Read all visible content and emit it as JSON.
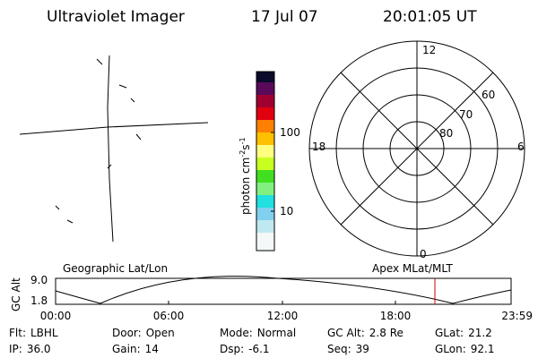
{
  "header": {
    "title": "Ultraviolet Imager",
    "date": "17 Jul 07",
    "time": "20:01:05 UT"
  },
  "colorbar": {
    "label": {
      "base": "photon cm",
      "exp1": "-2",
      "unit": "s",
      "exp2": "-1"
    },
    "ticks": [
      "100",
      "10"
    ]
  },
  "polar": {
    "mlt_labels": [
      "12",
      "18",
      "6",
      "0"
    ],
    "lat_labels": [
      "60",
      "70",
      "80"
    ]
  },
  "timeline": {
    "y_label": "GC Alt",
    "y_ticks": [
      "9.0",
      "1.8"
    ],
    "left_label": "Geographic Lat/Lon",
    "right_label": "Apex MLat/MLT",
    "x_ticks": [
      "00:00",
      "06:00",
      "12:00",
      "18:00",
      "23:59"
    ]
  },
  "footer": {
    "rows": [
      [
        {
          "label": "Flt:",
          "value": "LBHL"
        },
        {
          "label": "Door:",
          "value": "Open"
        },
        {
          "label": "Mode:",
          "value": "Normal"
        },
        {
          "label": "GC Alt:",
          "value": "2.8 Re"
        },
        {
          "label": "GLat:",
          "value": "21.2"
        }
      ],
      [
        {
          "label": "IP:",
          "value": "36.0"
        },
        {
          "label": "Gain:",
          "value": "14"
        },
        {
          "label": "Dsp:",
          "value": "-6.1"
        },
        {
          "label": "Seq:",
          "value": "39"
        },
        {
          "label": "GLon:",
          "value": "92.1"
        }
      ]
    ]
  }
}
